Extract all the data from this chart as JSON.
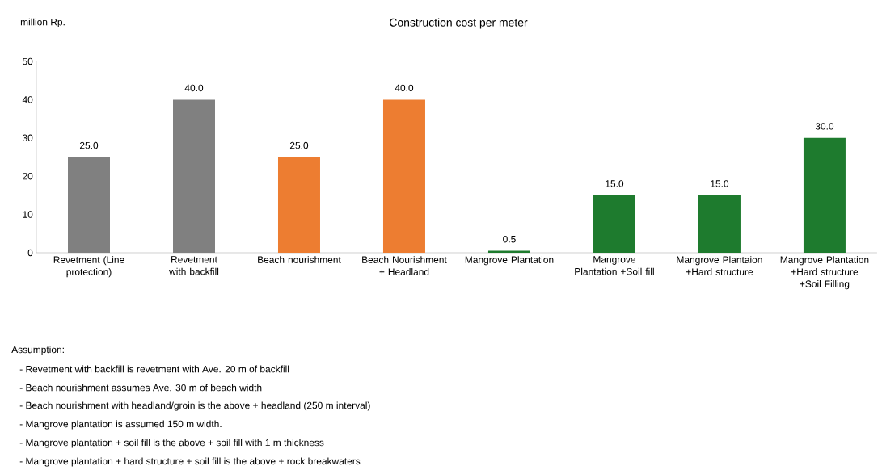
{
  "chart_data": {
    "type": "bar",
    "title": "Construction cost per meter",
    "ylabel": "million Rp.",
    "categories": [
      "Revetment (Line protection)",
      "Revetment with backfill",
      "Beach nourishment",
      "Beach Nourishment + Headland",
      "Mangrove Plantation",
      "Mangrove Plantation +Soil fill",
      "Mangrove Plantaion +Hard structure",
      "Mangrove Plantation +Hard structure +Soil Filling"
    ],
    "values": [
      25,
      40,
      25,
      40,
      0.5,
      15,
      15,
      30
    ],
    "colors": [
      "#808080",
      "#808080",
      "#ed7d31",
      "#ed7d31",
      "#1e7b2e",
      "#1e7b2e",
      "#1e7b2e",
      "#1e7b2e"
    ],
    "value_labels": [
      "25.0",
      "40.0",
      "25.0",
      "40.0",
      "0.5",
      "15.0",
      "15.0",
      "30.0"
    ],
    "ylim": [
      0,
      50
    ],
    "yticks": [
      0,
      10,
      20,
      30,
      40,
      50
    ],
    "grid": false,
    "annotations": [
      "Assumption:",
      "-   Revetment with backfill is revetment with Ave.  20 m of backfill",
      "-   Beach nourishment assumes Ave. 30 m of beach width",
      "-   Beach nourishment with headland/groin  is the above + headland (250 m interval)",
      "-   Mangrove plantation is assumed 150 m width.",
      "-   Mangrove plantation + soil fill is the above + soil fill with 1 m thickness",
      "-   Mangrove plantation + hard structure + soil fill is the above + rock breakwaters"
    ]
  }
}
